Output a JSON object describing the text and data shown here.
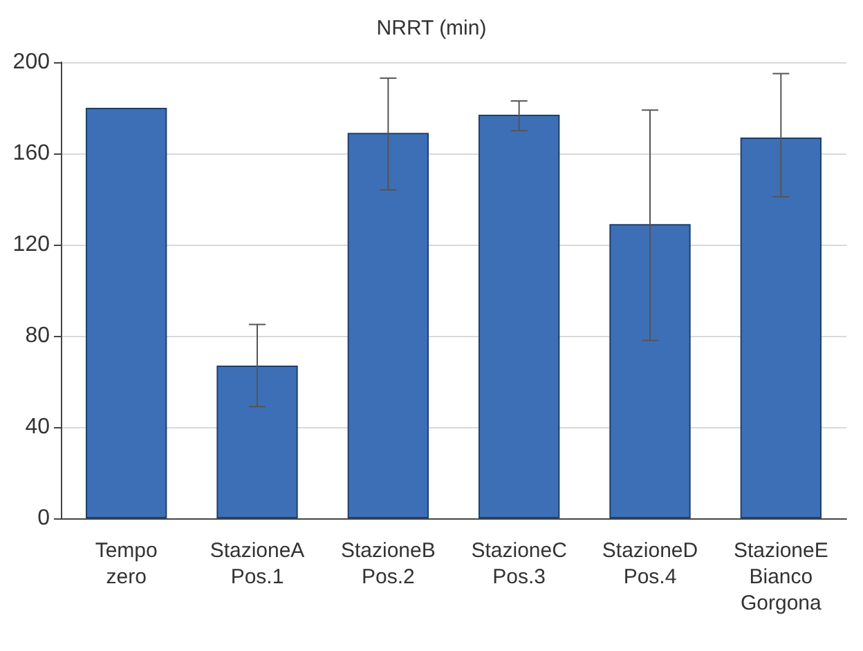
{
  "chart_data": {
    "type": "bar",
    "title": "NRRT (min)",
    "categories": [
      "Tempo\nzero",
      "StazioneA\nPos.1",
      "StazioneB\nPos.2",
      "StazioneC\nPos.3",
      "StazioneD\nPos.4",
      "StazioneE\nBianco\nGorgona"
    ],
    "values": [
      180,
      67,
      169,
      177,
      129,
      167
    ],
    "errors": [
      null,
      [
        49,
        85
      ],
      [
        144,
        193
      ],
      [
        170,
        183
      ],
      [
        78,
        179
      ],
      [
        141,
        195
      ]
    ],
    "color": "#3d6fb6",
    "ylim": [
      0,
      200
    ],
    "yticks": [
      0,
      40,
      80,
      120,
      160,
      200
    ],
    "grid": "y"
  }
}
